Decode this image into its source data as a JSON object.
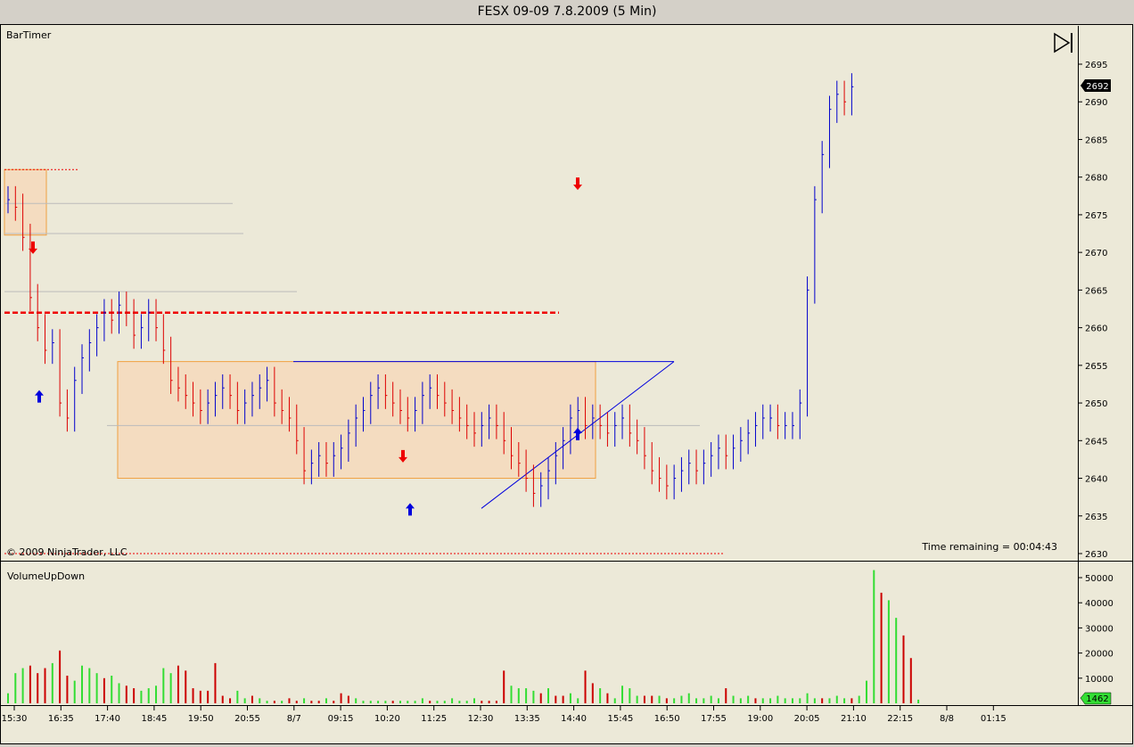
{
  "window": {
    "title": "FESX 09-09  7.8.2009 (5 Min)"
  },
  "panels": {
    "price_indicator_label": "BarTimer",
    "volume_indicator_label": "VolumeUpDown",
    "copyright": "© 2009 NinjaTrader, LLC",
    "time_remaining": "Time remaining = 00:04:43",
    "current_price_marker": "2692",
    "current_volume_marker": "1462"
  },
  "toolbar": {
    "play_to_end_icon": "skip-to-end-icon"
  },
  "colors": {
    "background": "#ece9d8",
    "up_bar": "#0000cc",
    "down_bar": "#dd0000",
    "volume_up": "#33dd33",
    "volume_down": "#cc0000",
    "range_box_fill": "#f4dcc0",
    "range_box_stroke": "#f0a040",
    "support_line": "#0000dd",
    "dashed_level": "#ee0000"
  },
  "chart_data": [
    {
      "type": "line",
      "title": "FESX 09-09  7.8.2009 (5 Min)",
      "xlabel": "",
      "ylabel": "",
      "ylim": [
        2630,
        2697
      ],
      "y_ticks": [
        2695,
        2690,
        2685,
        2680,
        2675,
        2670,
        2665,
        2660,
        2655,
        2650,
        2645,
        2640,
        2635,
        2630
      ],
      "x_tick_labels": [
        "15:30",
        "16:35",
        "17:40",
        "18:45",
        "19:50",
        "20:55",
        "8/7",
        "09:15",
        "10:20",
        "11:25",
        "12:30",
        "13:35",
        "14:40",
        "15:45",
        "16:50",
        "17:55",
        "19:00",
        "20:05",
        "21:10",
        "22:15",
        "8/8",
        "01:15"
      ],
      "last_price": 2692,
      "grid": false,
      "series": [
        {
          "values": [
            2677,
            2676,
            2672,
            2664,
            2660,
            2657,
            2658,
            2650,
            2648,
            2653,
            2656,
            2658,
            2660,
            2662,
            2661,
            2663,
            2662,
            2659,
            2660,
            2662,
            2660,
            2657,
            2653,
            2652,
            2651,
            2650,
            2649,
            2650,
            2651,
            2652,
            2651,
            2649,
            2650,
            2651,
            2652,
            2653,
            2650,
            2649,
            2648,
            2645,
            2641,
            2642,
            2643,
            2642,
            2643,
            2644,
            2646,
            2648,
            2649,
            2651,
            2652,
            2651,
            2650,
            2649,
            2648,
            2649,
            2651,
            2652,
            2651,
            2650,
            2649,
            2648,
            2647,
            2646,
            2647,
            2648,
            2647,
            2645,
            2643,
            2642,
            2640,
            2638,
            2639,
            2641,
            2643,
            2645,
            2648,
            2649,
            2647,
            2648,
            2647,
            2646,
            2647,
            2648,
            2646,
            2645,
            2643,
            2641,
            2640,
            2639,
            2640,
            2641,
            2642,
            2641,
            2642,
            2643,
            2644,
            2643,
            2644,
            2645,
            2646,
            2647,
            2648,
            2648,
            2647,
            2647,
            2647,
            2650,
            2665,
            2677,
            2683,
            2689,
            2691,
            2690,
            2692
          ]
        }
      ]
    },
    {
      "type": "bar",
      "title": "VolumeUpDown",
      "xlabel": "",
      "ylabel": "",
      "ylim": [
        0,
        55000
      ],
      "y_ticks": [
        50000,
        40000,
        30000,
        20000,
        10000
      ],
      "last_value": 1462,
      "series": [
        {
          "name": "",
          "values": [
            4000,
            12000,
            14000,
            15000,
            12000,
            14000,
            16000,
            21000,
            11000,
            9000,
            15000,
            14000,
            12000,
            10000,
            11000,
            8000,
            7000,
            6000,
            5000,
            6000,
            7000,
            14000,
            12000,
            15000,
            13000,
            6000,
            5000,
            5000,
            16000,
            3000,
            2000,
            5000,
            2000,
            3000,
            2000,
            1000,
            1000,
            1000,
            2000,
            1000,
            2000,
            1000,
            1000,
            2000,
            1000,
            4000,
            3000,
            2000,
            1000,
            1000,
            1000,
            1000,
            1000,
            1000,
            1000,
            1000,
            2000,
            1000,
            1000,
            1000,
            2000,
            1000,
            1000,
            2000,
            1000,
            1000,
            1000,
            13000,
            7000,
            6000,
            6000,
            5000,
            4000,
            6000,
            3000,
            3000,
            4000,
            2000,
            13000,
            8000,
            6000,
            4000,
            2000,
            7000,
            6000,
            3000,
            3000,
            3000,
            3000,
            2000,
            2000,
            3000,
            4000,
            2000,
            2000,
            3000,
            2000,
            6000,
            3000,
            2000,
            3000,
            2000,
            2000,
            2000,
            3000,
            2000,
            2000,
            2000,
            4000,
            2000,
            2000,
            2000,
            3000,
            2000,
            2000,
            3000,
            9000,
            53000,
            44000,
            41000,
            34000,
            27000,
            18000,
            1462
          ],
          "up": [
            1,
            1,
            1,
            0,
            0,
            0,
            1,
            0,
            0,
            1,
            1,
            1,
            1,
            0,
            1,
            1,
            0,
            0,
            1,
            1,
            1,
            1,
            1,
            0,
            0,
            0,
            0,
            0,
            0,
            0,
            0,
            1,
            1,
            0,
            1,
            1,
            0,
            1,
            0,
            0,
            1,
            0,
            0,
            1,
            0,
            0,
            0,
            1,
            1,
            1,
            1,
            1,
            0,
            1,
            1,
            1,
            1,
            0,
            1,
            1,
            1,
            1,
            1,
            1,
            0,
            0,
            0,
            0,
            1,
            1,
            1,
            1,
            0,
            1,
            0,
            0,
            1,
            1,
            0,
            0,
            1,
            0,
            1,
            1,
            1,
            1,
            0,
            0,
            1,
            0,
            1,
            1,
            1,
            1,
            1,
            1,
            1,
            0,
            1,
            1,
            1,
            0,
            1,
            1,
            1,
            1,
            1,
            1,
            1,
            1,
            0,
            1,
            1,
            1,
            0,
            1,
            1,
            1,
            0,
            1,
            1,
            0,
            0,
            1
          ]
        }
      ]
    }
  ]
}
